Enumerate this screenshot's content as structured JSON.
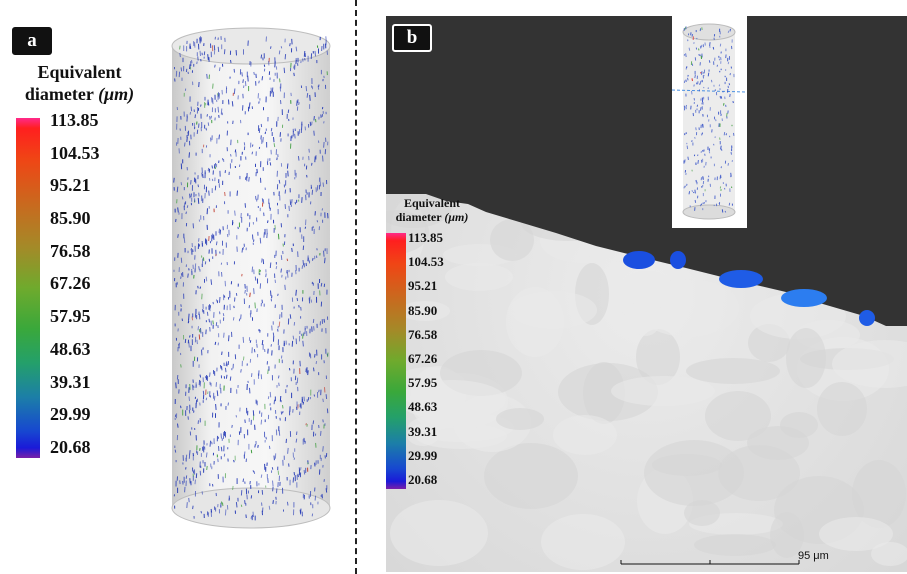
{
  "panels": {
    "a": {
      "label": "a"
    },
    "b": {
      "label": "b"
    }
  },
  "legend": {
    "title_line1": "Equivalent",
    "title_line2": "diameter",
    "unit": "(μm)",
    "ticks": [
      "113.85",
      "104.53",
      "95.21",
      "85.90",
      "76.58",
      "67.26",
      "57.95",
      "48.63",
      "39.31",
      "29.99",
      "20.68"
    ]
  },
  "scale_bar": {
    "label": "95 μm"
  },
  "colors": {
    "low": "#1a1ad8",
    "mid": "#6faa2d",
    "high": "#ff1f1f",
    "background_dark": "#333333"
  }
}
